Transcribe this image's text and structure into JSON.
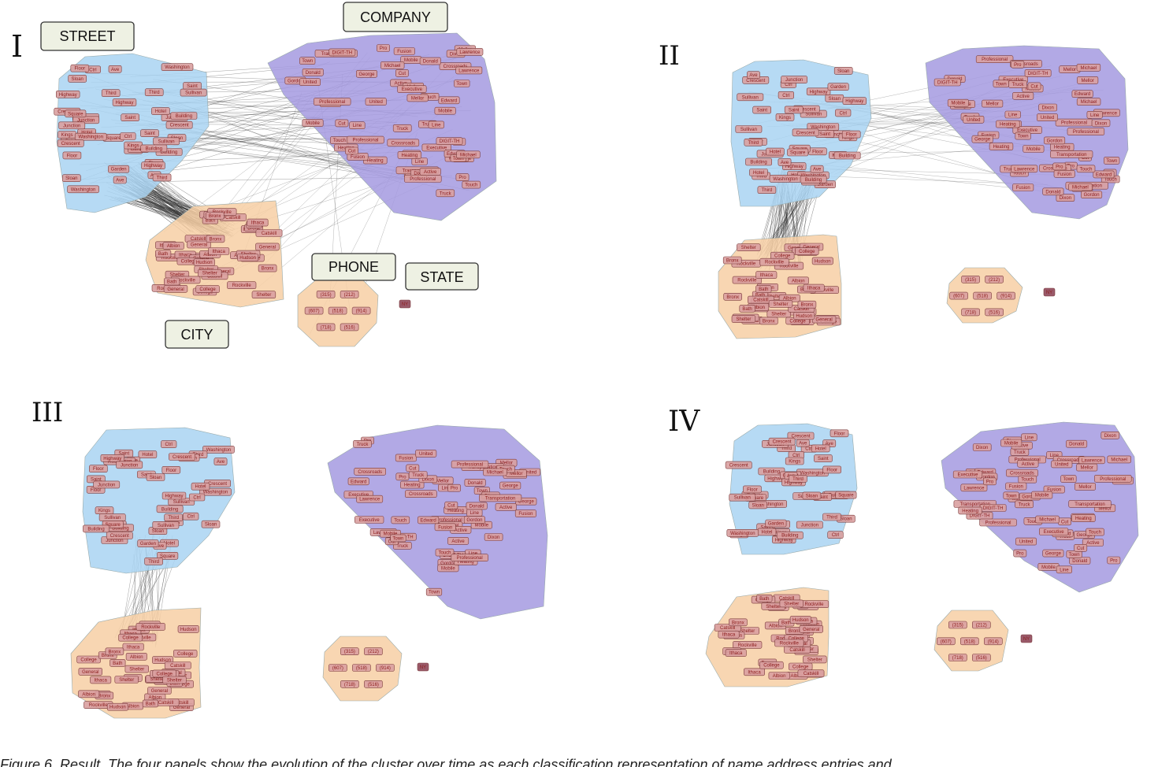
{
  "panels": [
    {
      "id": "I",
      "label": "I"
    },
    {
      "id": "II",
      "label": "II"
    },
    {
      "id": "III",
      "label": "III"
    },
    {
      "id": "IV",
      "label": "IV"
    }
  ],
  "categories": {
    "street": "STREET",
    "company": "COMPANY",
    "phone": "PHONE",
    "state": "STATE",
    "city": "CITY"
  },
  "colors": {
    "street": "#a9d3f2",
    "company": "#a49ae0",
    "city": "#f7cfa5",
    "phone": "#f7cfa5",
    "node": "#d9a0a0",
    "node_text": "#8b1c1c",
    "edge": "#2a2a2a"
  },
  "node_labels": {
    "street": [
      "Ctrl",
      "Kings",
      "Saint",
      "Hotel",
      "Washington",
      "Floor",
      "Sullivan",
      "Highway",
      "Junction",
      "Building",
      "Ave",
      "Sloan",
      "Crescent",
      "Third",
      "Garden",
      "Square"
    ],
    "company": [
      "Mobile",
      "Heating",
      "Mellor",
      "Town",
      "Fusion",
      "Pro",
      "Touch",
      "Line",
      "Truck",
      "Dixon",
      "Cut",
      "Michael",
      "Active",
      "Professional",
      "Edward",
      "Donald",
      "Transportation",
      "George",
      "Gordon",
      "Crossroads",
      "United",
      "Executive",
      "Lawrence",
      "DIGIT-TH"
    ],
    "city": [
      "Rockville",
      "College",
      "Shelter",
      "Bronx",
      "Albion",
      "Catskill",
      "Bath",
      "General",
      "Hudson",
      "Ithaca"
    ],
    "phone": [
      "(914)",
      "(516)",
      "(718)",
      "(607)",
      "(315)",
      "(212)",
      "(518)"
    ],
    "state": [
      "NY"
    ]
  },
  "caption": "Figure 6. Result. The four panels show the evolution of the cluster over time as each classification representation of name address entries and"
}
